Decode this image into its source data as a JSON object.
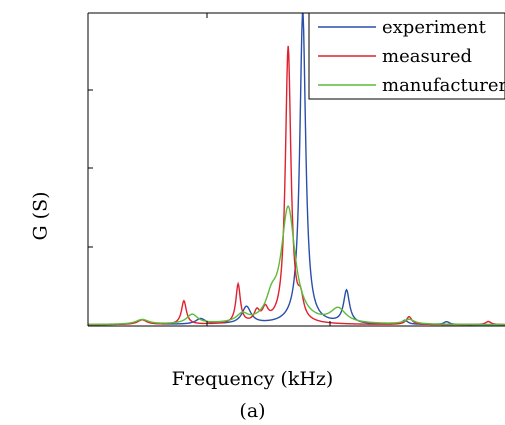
{
  "chart_data": {
    "type": "line",
    "title": "",
    "xlabel": "Frequency (kHz)",
    "ylabel": "G (S)",
    "caption": "(a)",
    "legend_position": "top-right",
    "grid": false,
    "xlim": [
      0,
      100
    ],
    "ylim": [
      0,
      100
    ],
    "series": [
      {
        "name": "experiment",
        "color": "#2a4fa8",
        "peaks": [
          {
            "x": 13,
            "h": 1.5,
            "w": 1.6
          },
          {
            "x": 27,
            "h": 1.8,
            "w": 1.4
          },
          {
            "x": 38,
            "h": 5.5,
            "w": 1.3
          },
          {
            "x": 51.5,
            "h": 100,
            "w": 0.85
          },
          {
            "x": 62,
            "h": 10.5,
            "w": 0.85
          },
          {
            "x": 76,
            "h": 1.3,
            "w": 0.8
          },
          {
            "x": 86,
            "h": 0.9,
            "w": 0.8
          }
        ]
      },
      {
        "name": "measured",
        "color": "#e0202e",
        "peaks": [
          {
            "x": 13,
            "h": 1.5,
            "w": 1.3
          },
          {
            "x": 23,
            "h": 7.5,
            "w": 0.7
          },
          {
            "x": 36,
            "h": 12.5,
            "w": 0.65
          },
          {
            "x": 40.5,
            "h": 3.5,
            "w": 0.8
          },
          {
            "x": 42.5,
            "h": 4.0,
            "w": 0.8
          },
          {
            "x": 48,
            "h": 88.5,
            "w": 0.8
          },
          {
            "x": 51,
            "h": 6,
            "w": 0.8
          },
          {
            "x": 77,
            "h": 2.5,
            "w": 0.8
          },
          {
            "x": 96,
            "h": 1.0,
            "w": 0.8
          }
        ]
      },
      {
        "name": "manufacturer",
        "color": "#5cbc3a",
        "peaks": [
          {
            "x": 13,
            "h": 1.5,
            "w": 1.8
          },
          {
            "x": 25,
            "h": 3.0,
            "w": 1.6
          },
          {
            "x": 37,
            "h": 2.5,
            "w": 1.6
          },
          {
            "x": 44,
            "h": 5.5,
            "w": 1.5
          },
          {
            "x": 48,
            "h": 37,
            "w": 2.0
          },
          {
            "x": 60,
            "h": 4.5,
            "w": 2.2
          },
          {
            "x": 77,
            "h": 1.5,
            "w": 1.5
          }
        ]
      }
    ]
  }
}
